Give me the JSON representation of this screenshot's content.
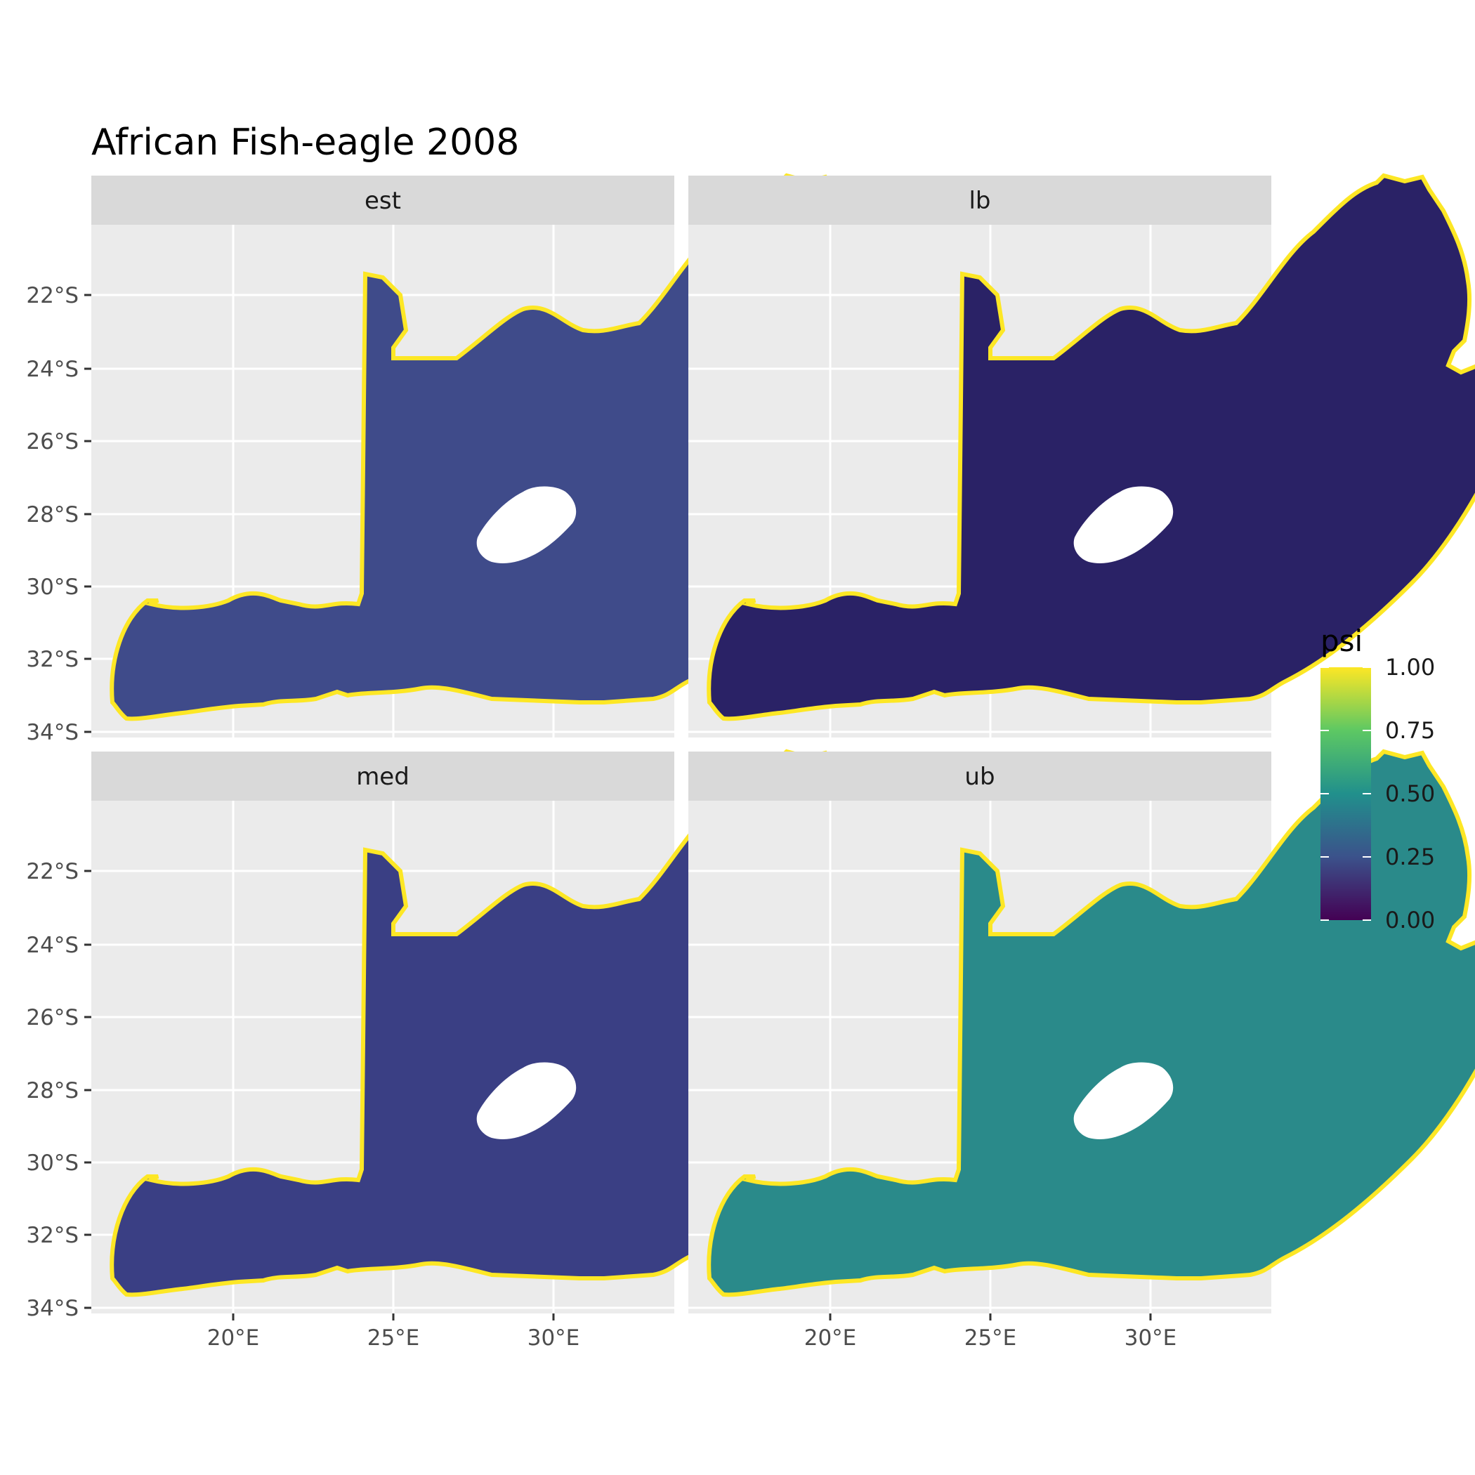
{
  "title": "African Fish-eagle 2008",
  "panels": [
    {
      "label": "est",
      "fill": "#3f4b8a"
    },
    {
      "label": "lb",
      "fill": "#2a2266"
    },
    {
      "label": "med",
      "fill": "#3a3f84"
    },
    {
      "label": "ub",
      "fill": "#2a8a8a"
    }
  ],
  "y_ticks": [
    "22°S",
    "24°S",
    "26°S",
    "28°S",
    "30°S",
    "32°S",
    "34°S"
  ],
  "x_ticks": [
    "20°E",
    "25°E",
    "30°E"
  ],
  "legend": {
    "title": "psi",
    "labels": [
      "1.00",
      "0.75",
      "0.50",
      "0.25",
      "0.00"
    ],
    "colors": [
      "#440154",
      "#3b528b",
      "#21908c",
      "#5dc863",
      "#fde725"
    ]
  }
}
